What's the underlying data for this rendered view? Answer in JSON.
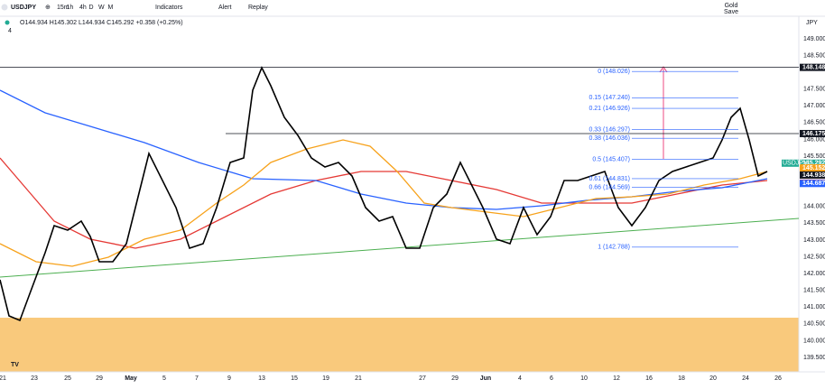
{
  "toolbar": {
    "symbol": "USDJPY",
    "intervals": [
      "15m",
      "1h",
      "4h",
      "D",
      "W",
      "M"
    ],
    "indicators": "Indicators",
    "alert": "Alert",
    "replay": "Replay",
    "gold": "Gold",
    "save": "Save"
  },
  "legend": {
    "ohlc": "O144.934 H145.302 L144.934 C145.292 +0.358 (+0.25%)",
    "count": "4"
  },
  "price_axis": {
    "currency": "JPY",
    "labels": [
      "149.000",
      "148.500",
      "147.500",
      "147.000",
      "146.500",
      "146.000",
      "145.500",
      "144.000",
      "143.500",
      "143.000",
      "142.500",
      "142.000",
      "141.500",
      "141.000",
      "140.500",
      "140.000",
      "139.500"
    ]
  },
  "price_tags": [
    {
      "text": "148.148",
      "color": "#131722"
    },
    {
      "text": "146.175",
      "color": "#131722"
    },
    {
      "text": "145.292",
      "color": "#22ab94"
    },
    {
      "text": "145.152",
      "color": "#f7a21b"
    },
    {
      "text": "144.938",
      "color": "#131722"
    },
    {
      "text": "144.697",
      "color": "#e53935"
    },
    {
      "text": "144.687",
      "color": "#2962ff"
    }
  ],
  "symbol_tag": "USDJPY",
  "date_axis": [
    "21",
    "23",
    "25",
    "29",
    "May",
    "5",
    "7",
    "9",
    "13",
    "15",
    "19",
    "21",
    "27",
    "29",
    "Jun",
    "4",
    "6",
    "10",
    "12",
    "16",
    "18",
    "20",
    "24",
    "26"
  ],
  "fib_levels": [
    "0 (148.026)",
    "0.15 (147.240)",
    "0.21 (146.926)",
    "0.33 (146.297)",
    "0.38 (146.036)",
    "0.5 (145.407)",
    "0.61 (144.831)",
    "0.66 (144.569)",
    "1 (142.788)"
  ]
}
